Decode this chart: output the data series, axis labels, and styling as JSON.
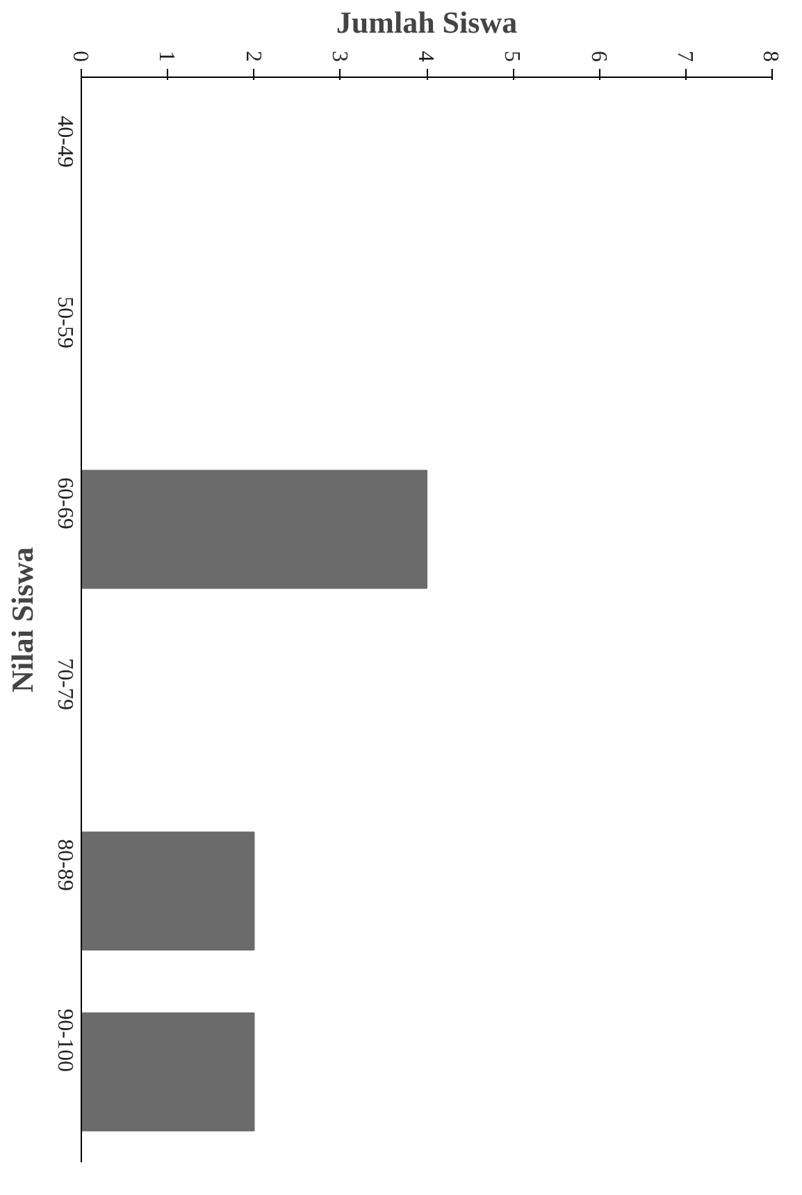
{
  "chart_data": {
    "type": "bar",
    "orientation": "horizontal",
    "xlabel": "Jumlah Siswa",
    "ylabel": "Nilai Siswa",
    "categories": [
      "40-49",
      "50-59",
      "60-69",
      "70-79",
      "80-89",
      "90-100"
    ],
    "values": [
      0,
      0,
      4,
      0,
      2,
      2
    ],
    "color": "#6b6b6b",
    "xlim": [
      0,
      8
    ],
    "xticks": [
      0,
      1,
      2,
      3,
      4,
      5,
      6,
      7,
      8
    ],
    "grid": false
  }
}
